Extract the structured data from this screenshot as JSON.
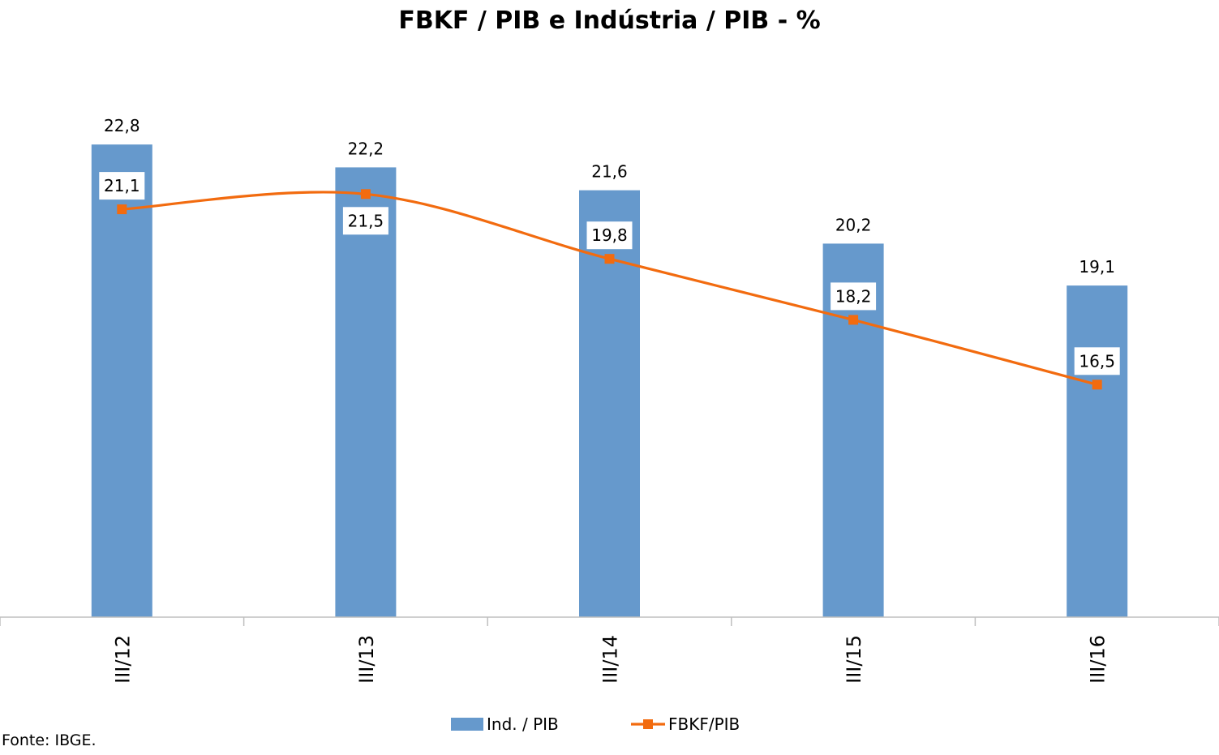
{
  "chart_data": {
    "type": "bar",
    "title": "FBKF / PIB e Indústria / PIB - %",
    "categories": [
      "III/12",
      "III/13",
      "III/14",
      "III/15",
      "III/16"
    ],
    "series": [
      {
        "name": "Ind. / PIB",
        "type": "bar",
        "color": "#6699CC",
        "values": [
          22.8,
          22.2,
          21.6,
          20.2,
          19.1
        ],
        "labels": [
          "22,8",
          "22,2",
          "21,6",
          "20,2",
          "19,1"
        ]
      },
      {
        "name": "FBKF/PIB",
        "type": "line",
        "color": "#F26B0F",
        "values": [
          21.1,
          21.5,
          19.8,
          18.2,
          16.5
        ],
        "labels": [
          "21,1",
          "21,5",
          "19,8",
          "18,2",
          "16,5"
        ]
      }
    ],
    "ylim": [
      10.4,
      23.9
    ],
    "grid": false,
    "legend_position": "bottom",
    "xlabel": "",
    "ylabel": ""
  },
  "source_note": "Fonte: IBGE."
}
